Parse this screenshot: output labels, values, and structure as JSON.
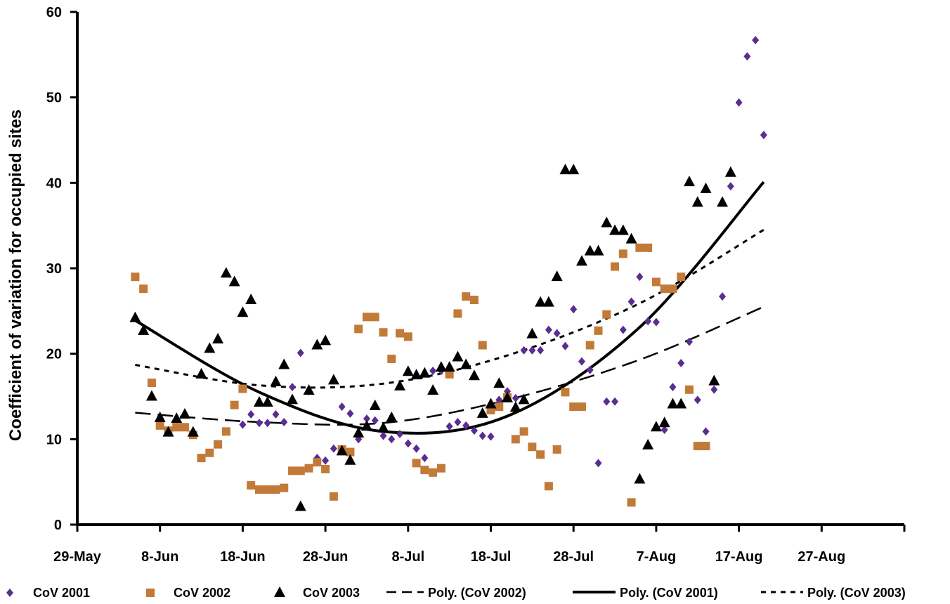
{
  "chart_data": {
    "type": "scatter",
    "ylabel": "Coefficient of variation for occupied sites",
    "xlabel": "",
    "ylim": [
      0,
      60
    ],
    "yticks": [
      0,
      10,
      20,
      30,
      40,
      50,
      60
    ],
    "xlim": [
      "29-May",
      "6-Sep"
    ],
    "xticks": [
      "29-May",
      "8-Jun",
      "18-Jun",
      "28-Jun",
      "8-Jul",
      "18-Jul",
      "28-Jul",
      "7-Aug",
      "17-Aug",
      "27-Aug"
    ],
    "grid": false,
    "legend_position": "bottom",
    "series": [
      {
        "name": "CoV 2001",
        "marker": "diamond",
        "color": "#5a2d91",
        "points": [
          [
            "18-Jun",
            11.7
          ],
          [
            "19-Jun",
            12.9
          ],
          [
            "20-Jun",
            11.9
          ],
          [
            "21-Jun",
            11.9
          ],
          [
            "22-Jun",
            12.9
          ],
          [
            "23-Jun",
            12.0
          ],
          [
            "24-Jun",
            16.1
          ],
          [
            "25-Jun",
            20.1
          ],
          [
            "26-Jun",
            15.6
          ],
          [
            "27-Jun",
            7.8
          ],
          [
            "28-Jun",
            7.5
          ],
          [
            "29-Jun",
            8.9
          ],
          [
            "30-Jun",
            13.8
          ],
          [
            "1-Jul",
            13.0
          ],
          [
            "2-Jul",
            10.0
          ],
          [
            "3-Jul",
            12.4
          ],
          [
            "4-Jul",
            12.2
          ],
          [
            "5-Jul",
            10.4
          ],
          [
            "6-Jul",
            10.0
          ],
          [
            "7-Jul",
            10.6
          ],
          [
            "8-Jul",
            9.5
          ],
          [
            "9-Jul",
            8.9
          ],
          [
            "10-Jul",
            7.8
          ],
          [
            "11-Jul",
            18.0
          ],
          [
            "12-Jul",
            18.0
          ],
          [
            "13-Jul",
            11.5
          ],
          [
            "14-Jul",
            12.0
          ],
          [
            "15-Jul",
            11.6
          ],
          [
            "16-Jul",
            11.0
          ],
          [
            "17-Jul",
            10.4
          ],
          [
            "18-Jul",
            10.3
          ],
          [
            "19-Jul",
            14.6
          ],
          [
            "20-Jul",
            15.6
          ],
          [
            "21-Jul",
            14.8
          ],
          [
            "22-Jul",
            20.4
          ],
          [
            "23-Jul",
            20.4
          ],
          [
            "24-Jul",
            20.4
          ],
          [
            "25-Jul",
            22.8
          ],
          [
            "26-Jul",
            22.4
          ],
          [
            "27-Jul",
            20.9
          ],
          [
            "28-Jul",
            25.2
          ],
          [
            "29-Jul",
            19.1
          ],
          [
            "30-Jul",
            18.1
          ],
          [
            "31-Jul",
            7.2
          ],
          [
            "1-Aug",
            14.4
          ],
          [
            "2-Aug",
            14.4
          ],
          [
            "3-Aug",
            22.8
          ],
          [
            "4-Aug",
            26.1
          ],
          [
            "5-Aug",
            29.0
          ],
          [
            "6-Aug",
            23.8
          ],
          [
            "7-Aug",
            23.7
          ],
          [
            "8-Aug",
            11.1
          ],
          [
            "9-Aug",
            16.1
          ],
          [
            "10-Aug",
            18.9
          ],
          [
            "11-Aug",
            21.4
          ],
          [
            "12-Aug",
            14.6
          ],
          [
            "13-Aug",
            10.9
          ],
          [
            "14-Aug",
            15.8
          ],
          [
            "15-Aug",
            26.7
          ],
          [
            "16-Aug",
            39.6
          ],
          [
            "17-Aug",
            49.4
          ],
          [
            "18-Aug",
            54.8
          ],
          [
            "19-Aug",
            56.7
          ],
          [
            "20-Aug",
            45.6
          ]
        ]
      },
      {
        "name": "CoV 2002",
        "marker": "square",
        "color": "#c27a38",
        "points": [
          [
            "5-Jun",
            29.0
          ],
          [
            "6-Jun",
            27.6
          ],
          [
            "7-Jun",
            16.6
          ],
          [
            "8-Jun",
            11.6
          ],
          [
            "9-Jun",
            11.0
          ],
          [
            "10-Jun",
            11.4
          ],
          [
            "11-Jun",
            11.4
          ],
          [
            "12-Jun",
            10.5
          ],
          [
            "13-Jun",
            7.8
          ],
          [
            "14-Jun",
            8.4
          ],
          [
            "15-Jun",
            9.4
          ],
          [
            "16-Jun",
            10.9
          ],
          [
            "17-Jun",
            14.0
          ],
          [
            "18-Jun",
            15.9
          ],
          [
            "19-Jun",
            4.6
          ],
          [
            "20-Jun",
            4.1
          ],
          [
            "21-Jun",
            4.1
          ],
          [
            "22-Jun",
            4.1
          ],
          [
            "23-Jun",
            4.3
          ],
          [
            "24-Jun",
            6.3
          ],
          [
            "25-Jun",
            6.3
          ],
          [
            "26-Jun",
            6.6
          ],
          [
            "27-Jun",
            7.3
          ],
          [
            "28-Jun",
            6.5
          ],
          [
            "29-Jun",
            3.3
          ],
          [
            "30-Jun",
            8.8
          ],
          [
            "1-Jul",
            8.5
          ],
          [
            "2-Jul",
            22.9
          ],
          [
            "3-Jul",
            24.3
          ],
          [
            "4-Jul",
            24.3
          ],
          [
            "5-Jul",
            22.5
          ],
          [
            "6-Jul",
            19.4
          ],
          [
            "7-Jul",
            22.4
          ],
          [
            "8-Jul",
            22.0
          ],
          [
            "9-Jul",
            7.2
          ],
          [
            "10-Jul",
            6.4
          ],
          [
            "11-Jul",
            6.1
          ],
          [
            "12-Jul",
            6.6
          ],
          [
            "13-Jul",
            17.6
          ],
          [
            "14-Jul",
            24.7
          ],
          [
            "15-Jul",
            26.7
          ],
          [
            "16-Jul",
            26.3
          ],
          [
            "17-Jul",
            21.0
          ],
          [
            "18-Jul",
            13.4
          ],
          [
            "19-Jul",
            13.8
          ],
          [
            "20-Jul",
            14.9
          ],
          [
            "21-Jul",
            10.0
          ],
          [
            "22-Jul",
            10.9
          ],
          [
            "23-Jul",
            9.1
          ],
          [
            "24-Jul",
            8.2
          ],
          [
            "25-Jul",
            4.5
          ],
          [
            "26-Jul",
            8.8
          ],
          [
            "27-Jul",
            15.5
          ],
          [
            "28-Jul",
            13.8
          ],
          [
            "29-Jul",
            13.8
          ],
          [
            "30-Jul",
            21.0
          ],
          [
            "31-Jul",
            22.7
          ],
          [
            "1-Aug",
            24.6
          ],
          [
            "2-Aug",
            30.2
          ],
          [
            "3-Aug",
            31.7
          ],
          [
            "4-Aug",
            2.6
          ],
          [
            "5-Aug",
            32.4
          ],
          [
            "6-Aug",
            32.4
          ],
          [
            "7-Aug",
            28.4
          ],
          [
            "8-Aug",
            27.6
          ],
          [
            "9-Aug",
            27.6
          ],
          [
            "10-Aug",
            29.0
          ],
          [
            "11-Aug",
            15.8
          ],
          [
            "12-Aug",
            9.2
          ],
          [
            "13-Aug",
            9.2
          ]
        ]
      },
      {
        "name": "CoV 2003",
        "marker": "triangle",
        "color": "#000000",
        "points": [
          [
            "5-Jun",
            24.2
          ],
          [
            "6-Jun",
            22.7
          ],
          [
            "7-Jun",
            15.0
          ],
          [
            "8-Jun",
            12.5
          ],
          [
            "9-Jun",
            10.8
          ],
          [
            "10-Jun",
            12.4
          ],
          [
            "11-Jun",
            12.9
          ],
          [
            "12-Jun",
            10.8
          ],
          [
            "13-Jun",
            17.6
          ],
          [
            "14-Jun",
            20.6
          ],
          [
            "15-Jun",
            21.7
          ],
          [
            "16-Jun",
            29.4
          ],
          [
            "17-Jun",
            28.4
          ],
          [
            "18-Jun",
            24.8
          ],
          [
            "19-Jun",
            26.3
          ],
          [
            "20-Jun",
            14.3
          ],
          [
            "21-Jun",
            14.3
          ],
          [
            "22-Jun",
            16.7
          ],
          [
            "23-Jun",
            18.7
          ],
          [
            "24-Jun",
            14.6
          ],
          [
            "25-Jun",
            2.1
          ],
          [
            "26-Jun",
            15.7
          ],
          [
            "27-Jun",
            21.0
          ],
          [
            "28-Jun",
            21.5
          ],
          [
            "29-Jun",
            16.9
          ],
          [
            "30-Jun",
            8.6
          ],
          [
            "1-Jul",
            7.5
          ],
          [
            "2-Jul",
            10.7
          ],
          [
            "3-Jul",
            11.5
          ],
          [
            "4-Jul",
            13.9
          ],
          [
            "5-Jul",
            11.3
          ],
          [
            "6-Jul",
            12.5
          ],
          [
            "7-Jul",
            16.2
          ],
          [
            "8-Jul",
            17.9
          ],
          [
            "9-Jul",
            17.5
          ],
          [
            "10-Jul",
            17.7
          ],
          [
            "11-Jul",
            15.7
          ],
          [
            "12-Jul",
            18.4
          ],
          [
            "13-Jul",
            18.4
          ],
          [
            "14-Jul",
            19.6
          ],
          [
            "15-Jul",
            18.7
          ],
          [
            "16-Jul",
            17.4
          ],
          [
            "17-Jul",
            13.0
          ],
          [
            "18-Jul",
            14.1
          ],
          [
            "19-Jul",
            16.5
          ],
          [
            "20-Jul",
            14.8
          ],
          [
            "21-Jul",
            13.7
          ],
          [
            "22-Jul",
            14.6
          ],
          [
            "23-Jul",
            22.3
          ],
          [
            "24-Jul",
            26.0
          ],
          [
            "25-Jul",
            26.0
          ],
          [
            "26-Jul",
            29.0
          ],
          [
            "27-Jul",
            41.5
          ],
          [
            "28-Jul",
            41.5
          ],
          [
            "29-Jul",
            30.8
          ],
          [
            "30-Jul",
            32.0
          ],
          [
            "31-Jul",
            32.0
          ],
          [
            "1-Aug",
            35.3
          ],
          [
            "2-Aug",
            34.4
          ],
          [
            "3-Aug",
            34.4
          ],
          [
            "4-Aug",
            33.4
          ],
          [
            "5-Aug",
            5.3
          ],
          [
            "6-Aug",
            9.3
          ],
          [
            "7-Aug",
            11.4
          ],
          [
            "8-Aug",
            11.9
          ],
          [
            "9-Aug",
            14.1
          ],
          [
            "10-Aug",
            14.1
          ],
          [
            "11-Aug",
            40.1
          ],
          [
            "12-Aug",
            37.7
          ],
          [
            "13-Aug",
            39.3
          ],
          [
            "14-Aug",
            16.8
          ],
          [
            "15-Aug",
            37.7
          ],
          [
            "16-Aug",
            41.2
          ]
        ]
      }
    ],
    "trendlines": [
      {
        "name": "Poly. (CoV 2002)",
        "style": "long-dash",
        "color": "#000000",
        "points": [
          [
            "5-Jun",
            13.1
          ],
          [
            "20-Jun",
            12.0
          ],
          [
            "5-Jul",
            11.9
          ],
          [
            "20-Jul",
            14.6
          ],
          [
            "5-Aug",
            19.3
          ],
          [
            "20-Aug",
            25.5
          ]
        ]
      },
      {
        "name": "Poly. (CoV 2001)",
        "style": "solid",
        "color": "#000000",
        "points": [
          [
            "5-Jun",
            23.9
          ],
          [
            "20-Jun",
            15.5
          ],
          [
            "5-Jul",
            10.9
          ],
          [
            "20-Jul",
            12.7
          ],
          [
            "5-Aug",
            23.1
          ],
          [
            "20-Aug",
            40.1
          ]
        ]
      },
      {
        "name": "Poly. (CoV 2003)",
        "style": "short-dash",
        "color": "#000000",
        "points": [
          [
            "5-Jun",
            18.7
          ],
          [
            "20-Jun",
            16.3
          ],
          [
            "5-Jul",
            16.5
          ],
          [
            "20-Jul",
            19.8
          ],
          [
            "5-Aug",
            25.9
          ],
          [
            "20-Aug",
            34.5
          ]
        ]
      }
    ]
  }
}
